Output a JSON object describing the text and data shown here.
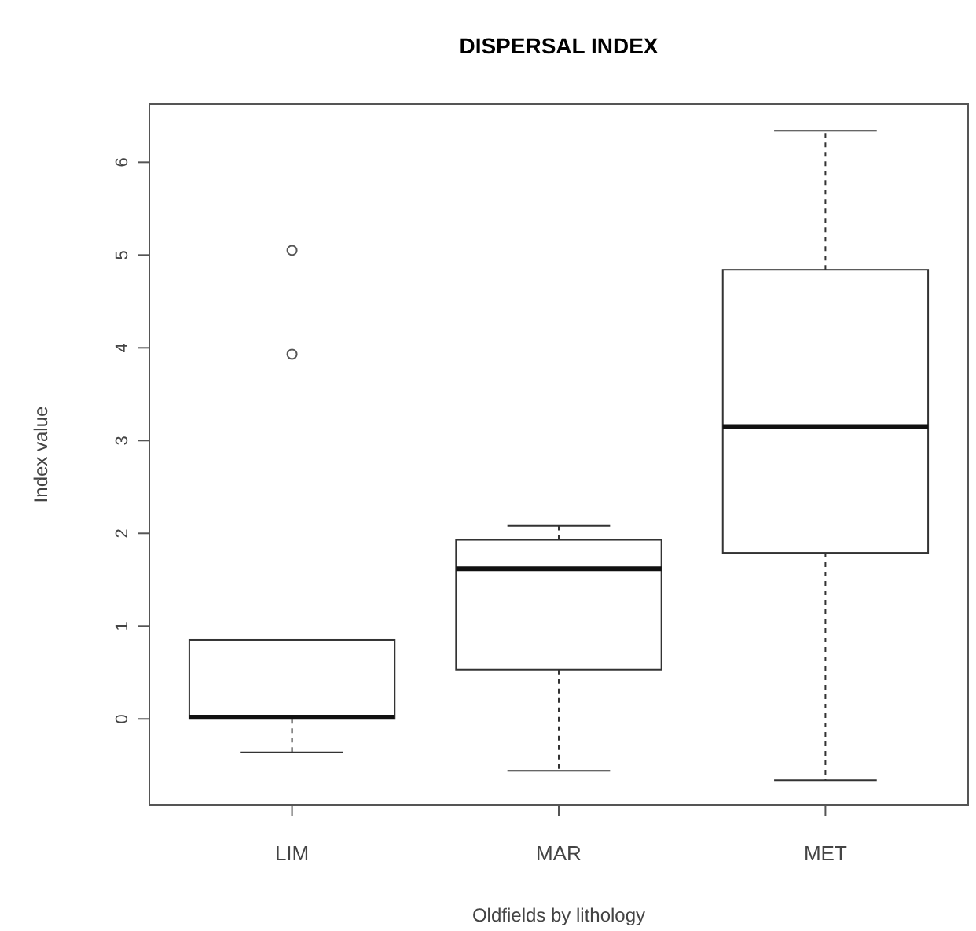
{
  "chart_data": {
    "type": "box",
    "title": "DISPERSAL INDEX",
    "xlabel": "Oldfields by lithology",
    "ylabel": "Index value",
    "categories": [
      "LIM",
      "MAR",
      "MET"
    ],
    "boxes": [
      {
        "low": -0.36,
        "q1": 0,
        "median": 0.02,
        "q3": 0.85,
        "high": 0.85,
        "outliers": [
          5.05,
          3.93
        ]
      },
      {
        "low": -0.56,
        "q1": 0.53,
        "median": 1.62,
        "q3": 1.93,
        "high": 2.08
      },
      {
        "low": -0.66,
        "q1": 1.79,
        "median": 3.15,
        "q3": 4.84,
        "high": 6.34
      }
    ],
    "ylim": [
      -0.93,
      6.63
    ],
    "yticks": [
      0,
      1,
      2,
      3,
      4,
      5,
      6
    ],
    "grid": false,
    "line_style": "dashed",
    "marker": "circle"
  }
}
